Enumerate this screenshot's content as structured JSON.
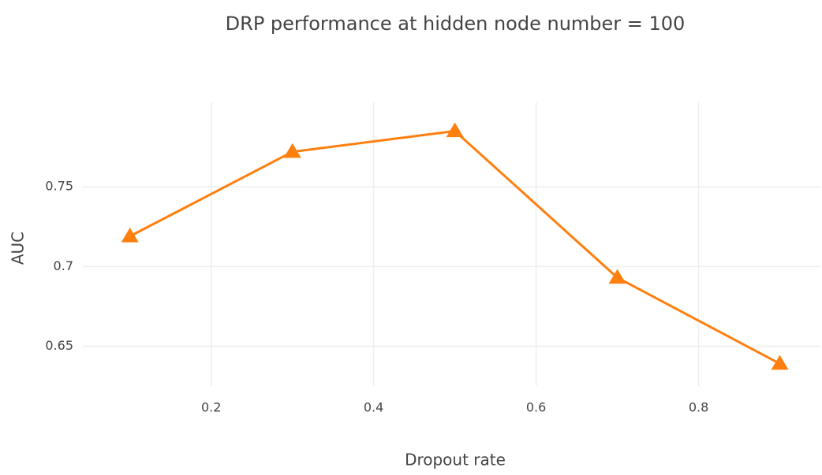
{
  "chart_data": {
    "type": "line",
    "title": "DRP performance at hidden node number = 100",
    "x_label": "Dropout rate",
    "y_label": "AUC",
    "x": [
      0.1,
      0.3,
      0.5,
      0.7,
      0.9
    ],
    "series": [
      {
        "color": "#ff7f0e",
        "values": [
          0.719,
          0.772,
          0.785,
          0.693,
          0.639
        ]
      }
    ],
    "marker": "triangle-up",
    "xlim": [
      0.042,
      0.95
    ],
    "ylim": [
      0.625,
      0.803
    ],
    "xticks": [
      0.2,
      0.4,
      0.6,
      0.8
    ],
    "yticks": [
      0.65,
      0.7,
      0.75
    ],
    "grid": true
  }
}
